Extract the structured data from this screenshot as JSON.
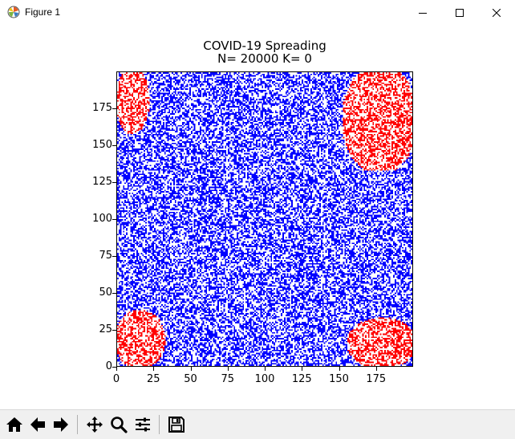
{
  "window": {
    "title": "Figure 1",
    "icons": {
      "app": "matplotlib-icon",
      "minimize": "minimize-icon",
      "maximize": "maximize-icon",
      "close": "close-icon"
    }
  },
  "toolbar": {
    "buttons": [
      "home-icon",
      "back-arrow-icon",
      "forward-arrow-icon",
      "pan-icon",
      "zoom-icon",
      "configure-subplots-icon",
      "save-icon"
    ]
  },
  "chart_data": {
    "type": "heatmap",
    "title": "COVID-19 Spreading",
    "subtitle": "N= 20000 K= 0",
    "xlim": [
      0,
      200
    ],
    "ylim": [
      0,
      200
    ],
    "grid_size": [
      200,
      200
    ],
    "xticks": [
      "0",
      "25",
      "50",
      "75",
      "100",
      "125",
      "150",
      "175"
    ],
    "yticks": [
      "0",
      "25",
      "50",
      "75",
      "100",
      "125",
      "150",
      "175"
    ],
    "cell_colors": {
      "healthy": "#0000ff",
      "infected": "#ff0000",
      "empty": "#ffffff"
    },
    "healthy_fraction": 0.5,
    "infected_regions": [
      {
        "corner": "top-left",
        "x_range": [
          0,
          20
        ],
        "y_range": [
          160,
          200
        ]
      },
      {
        "corner": "top-right",
        "x_range": [
          155,
          200
        ],
        "y_range": [
          135,
          200
        ]
      },
      {
        "corner": "bottom-left",
        "x_range": [
          0,
          30
        ],
        "y_range": [
          0,
          35
        ]
      },
      {
        "corner": "bottom-right",
        "x_range": [
          158,
          200
        ],
        "y_range": [
          0,
          30
        ]
      }
    ],
    "grid": false,
    "legend": "none"
  }
}
